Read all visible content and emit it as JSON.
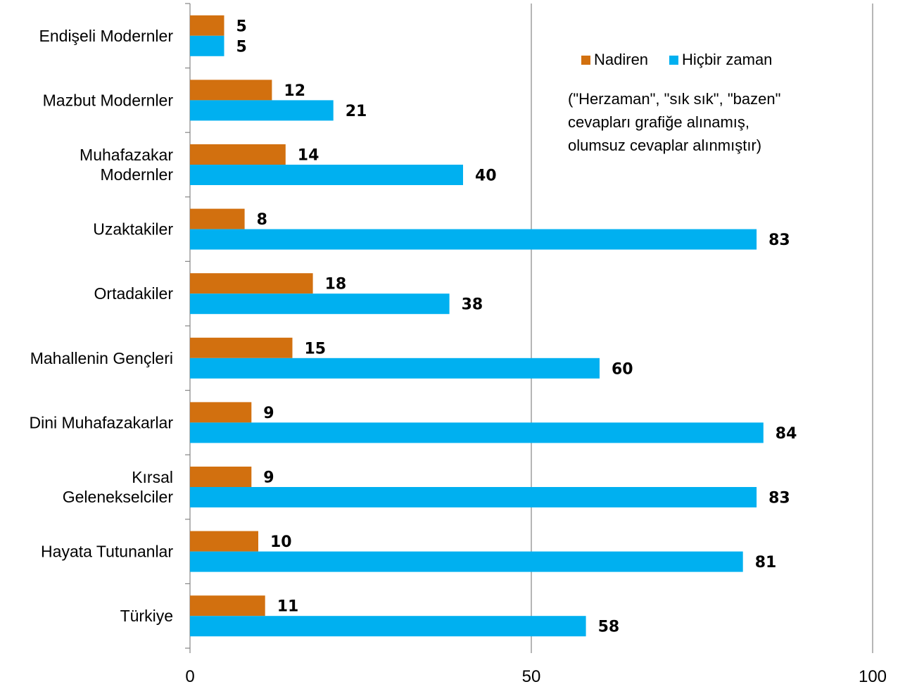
{
  "chart_data": {
    "type": "bar",
    "orientation": "horizontal",
    "categories": [
      "Endişeli Modernler",
      "Mazbut Modernler",
      "Muhafazakar Modernler",
      "Uzaktakiler",
      "Ortadakiler",
      "Mahallenin Gençleri",
      "Dini Muhafazakarlar",
      "Kırsal Gelenekselciler",
      "Hayata Tutunanlar",
      "Türkiye"
    ],
    "category_lines": [
      [
        "Endişeli Modernler"
      ],
      [
        "Mazbut Modernler"
      ],
      [
        "Muhafazakar",
        "Modernler"
      ],
      [
        "Uzaktakiler"
      ],
      [
        "Ortadakiler"
      ],
      [
        "Mahallenin Gençleri"
      ],
      [
        "Dini Muhafazakarlar"
      ],
      [
        "Kırsal",
        "Gelenekselciler"
      ],
      [
        "Hayata Tutunanlar"
      ],
      [
        "Türkiye"
      ]
    ],
    "series": [
      {
        "name": "Nadiren",
        "color": "#d2700f",
        "values": [
          5,
          12,
          14,
          8,
          18,
          15,
          9,
          9,
          10,
          11
        ]
      },
      {
        "name": "Hiçbir zaman",
        "color": "#00b0f0",
        "values": [
          5,
          21,
          40,
          83,
          38,
          60,
          84,
          83,
          81,
          58
        ]
      }
    ],
    "xlim": [
      0,
      100
    ],
    "xticks": [
      "0",
      "50",
      "100"
    ],
    "grid": true,
    "legend_position": "top-right",
    "annotation_lines": [
      "(\"Herzaman\", \"sık sık\", \"bazen\"",
      "cevapları  grafiğe alınamış,",
      "olumsuz cevaplar  alınmıştır)"
    ]
  }
}
